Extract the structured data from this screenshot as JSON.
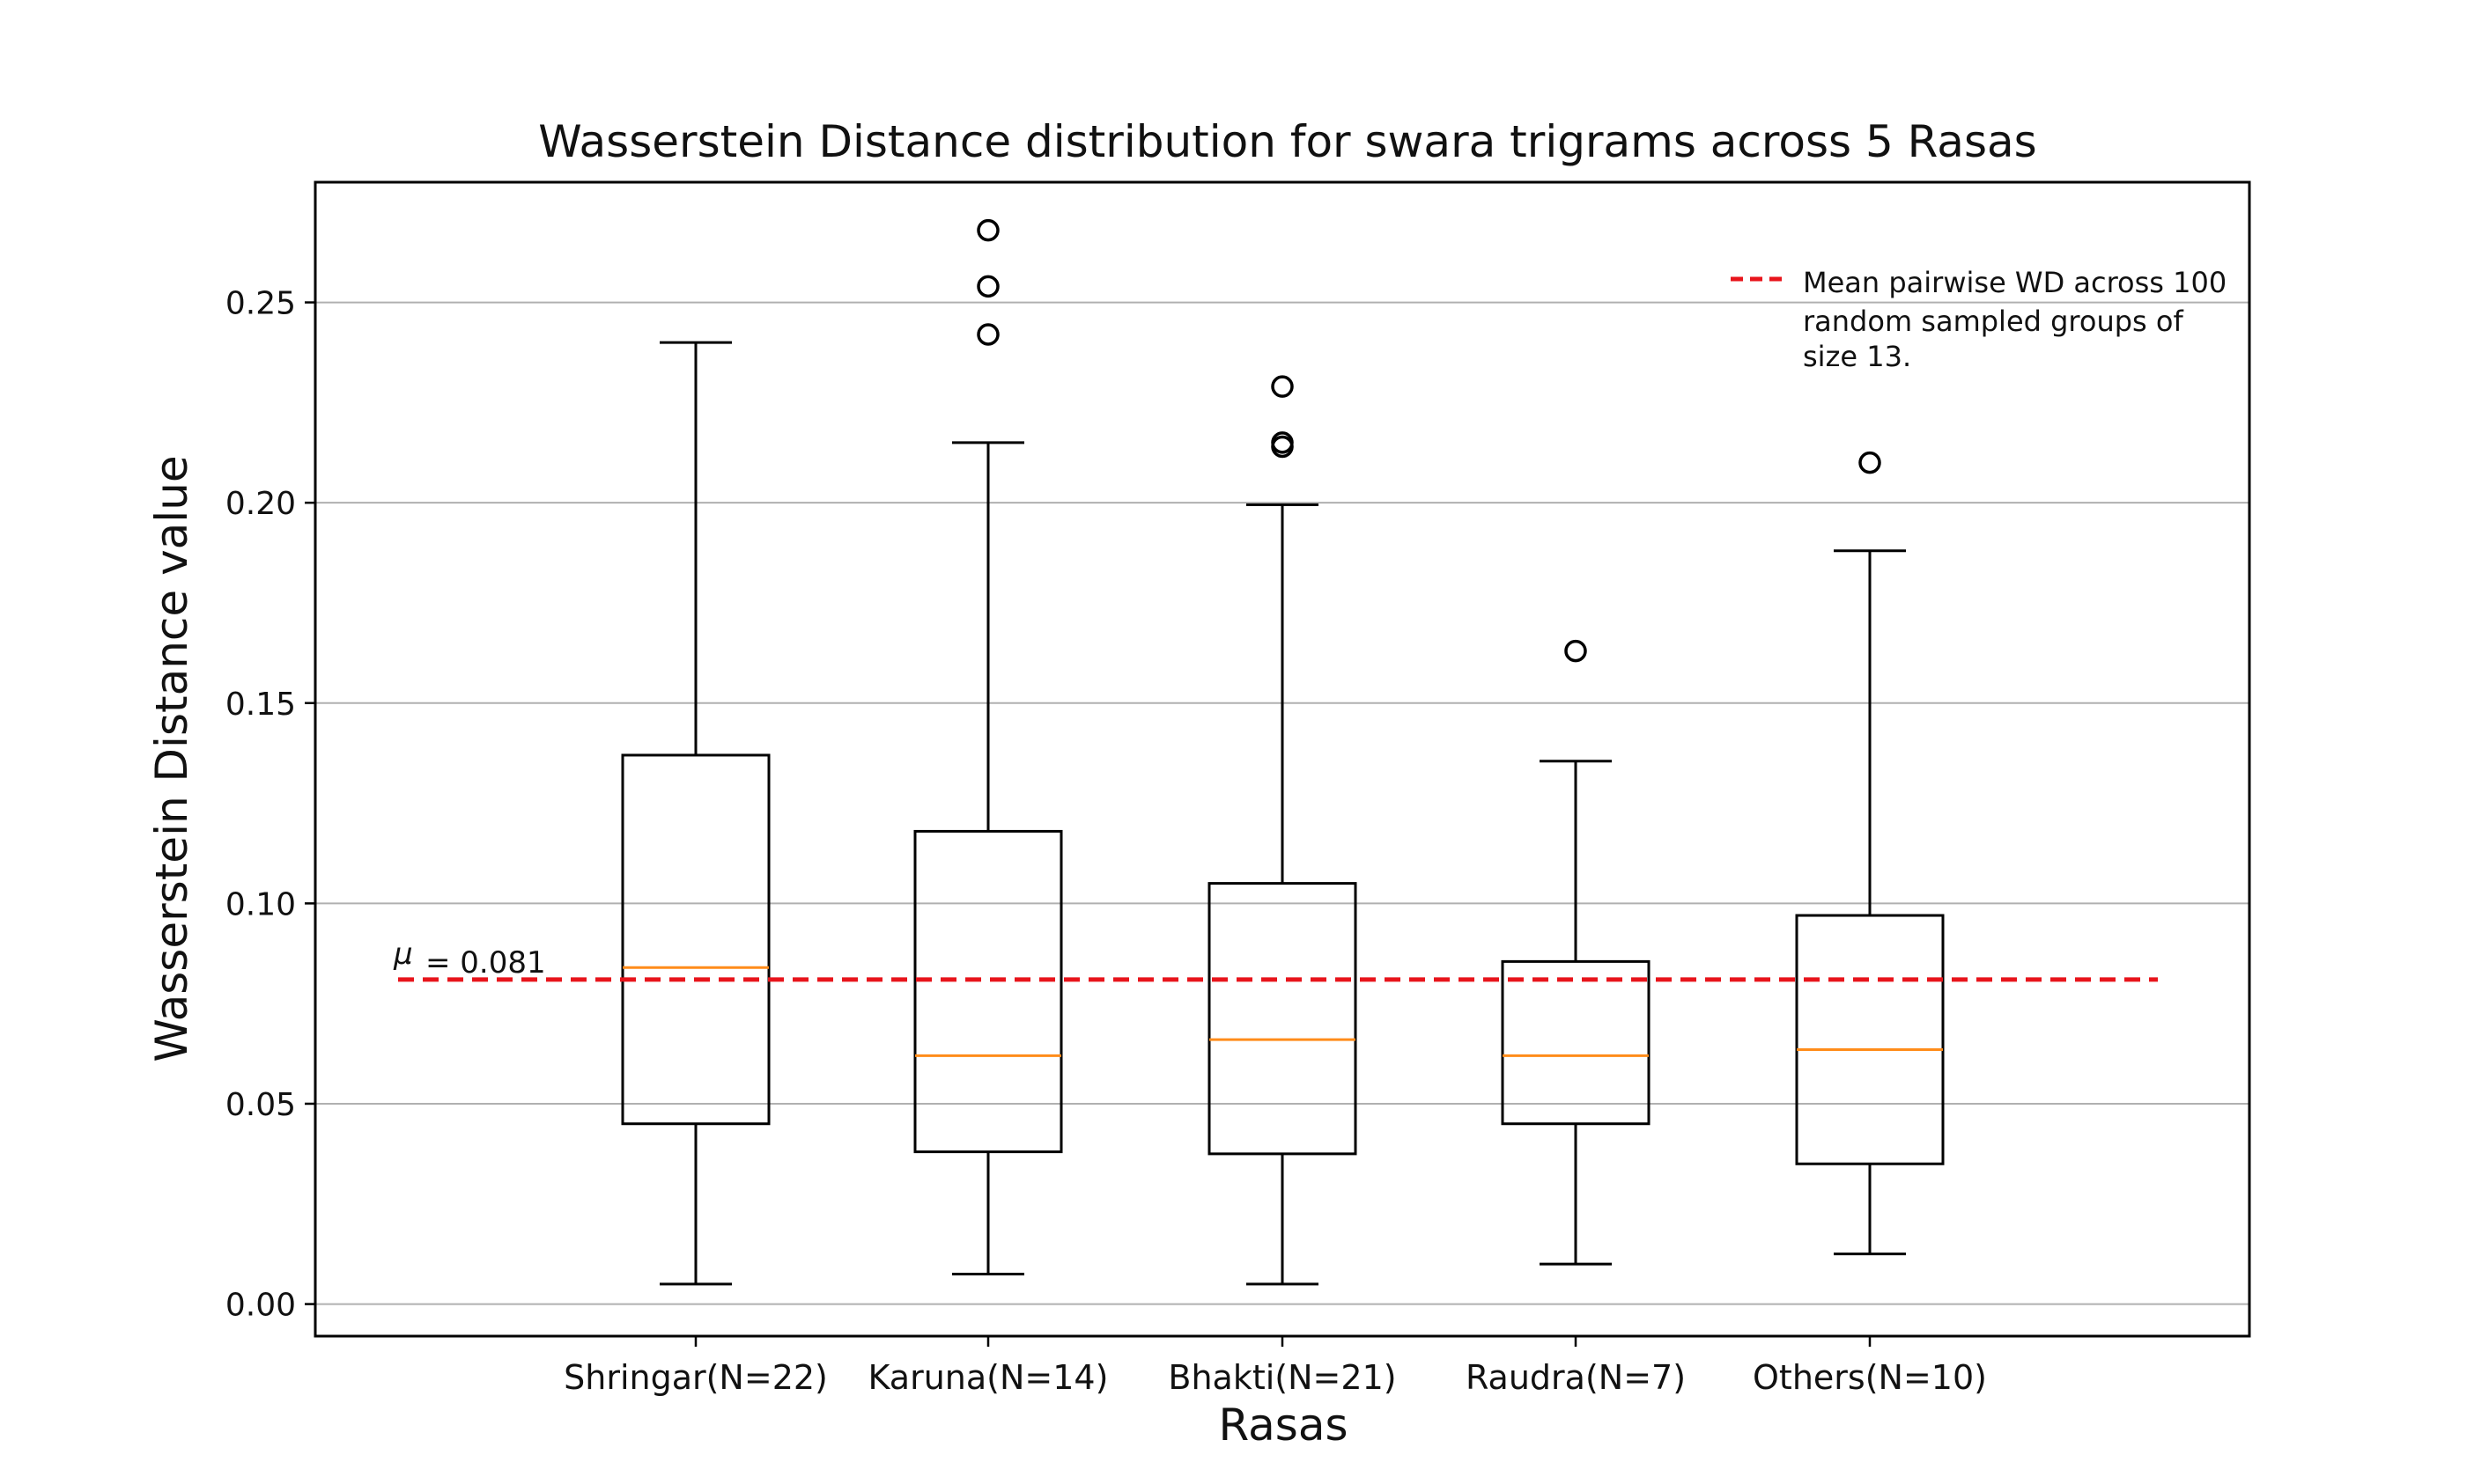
{
  "chart_data": {
    "type": "box",
    "title": "Wasserstein Distance distribution for swara trigrams across 5 Rasas",
    "xlabel": "Rasas",
    "ylabel": "Wasserstein Distance value",
    "ylim": [
      -0.008,
      0.28
    ],
    "yticks": [
      {
        "value": 0.0,
        "label": "0.00"
      },
      {
        "value": 0.05,
        "label": "0.05"
      },
      {
        "value": 0.1,
        "label": "0.10"
      },
      {
        "value": 0.15,
        "label": "0.15"
      },
      {
        "value": 0.2,
        "label": "0.20"
      },
      {
        "value": 0.25,
        "label": "0.25"
      }
    ],
    "grid": "horizontal",
    "categories": [
      "Shringar(N=22)",
      "Karuna(N=14)",
      "Bhakti(N=21)",
      "Raudra(N=7)",
      "Others(N=10)"
    ],
    "boxes": [
      {
        "whisker_low": 0.005,
        "q1": 0.045,
        "median": 0.084,
        "q3": 0.137,
        "whisker_high": 0.24,
        "outliers": []
      },
      {
        "whisker_low": 0.0075,
        "q1": 0.038,
        "median": 0.062,
        "q3": 0.118,
        "whisker_high": 0.215,
        "outliers": [
          0.242,
          0.254,
          0.268
        ]
      },
      {
        "whisker_low": 0.005,
        "q1": 0.0375,
        "median": 0.066,
        "q3": 0.105,
        "whisker_high": 0.1995,
        "outliers": [
          0.214,
          0.215,
          0.229
        ]
      },
      {
        "whisker_low": 0.01,
        "q1": 0.045,
        "median": 0.062,
        "q3": 0.0855,
        "whisker_high": 0.1355,
        "outliers": [
          0.163
        ]
      },
      {
        "whisker_low": 0.0125,
        "q1": 0.035,
        "median": 0.0635,
        "q3": 0.097,
        "whisker_high": 0.188,
        "outliers": [
          0.21
        ]
      }
    ],
    "reference_line": {
      "value": 0.081,
      "label": "= 0.081",
      "symbol": "μ",
      "color": "#e8141b",
      "style": "dashed"
    },
    "legend": {
      "placement": "top-right",
      "lines": [
        "Mean pairwise WD across 100",
        "random sampled groups of",
        "size 13."
      ]
    },
    "colors": {
      "box": "#000000",
      "median": "#ff8c1a",
      "grid": "#b0b0b0"
    }
  }
}
